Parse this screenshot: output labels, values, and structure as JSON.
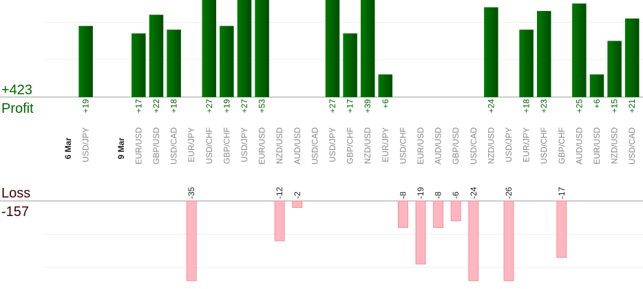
{
  "chart_data": {
    "type": "bar",
    "profit_title": "Profit",
    "loss_title": "Loss",
    "totals": {
      "profit": {
        "value": 423,
        "label": "+423"
      },
      "loss": -157
    },
    "ylim": [
      0,
      26
    ],
    "yticks": [
      0,
      10,
      20
    ],
    "y2lim": [
      -24,
      0
    ],
    "y2ticks": [
      -20,
      -10,
      0
    ],
    "grid": true,
    "profit_color": "#006400",
    "loss_color": "#ffb6c1",
    "days": [
      {
        "date": "6 Mar",
        "categories": [
          "USD/JPY"
        ],
        "values": [
          19
        ],
        "value_labels": [
          "+19"
        ]
      },
      {
        "date": "9 Mar",
        "categories": [
          "EUR/USD",
          "GBP/USD",
          "USD/CAD",
          "EUR/JPY",
          "USD/CHF",
          "GBP/CHF",
          "USD/JPY",
          "EUR/USD",
          "NZD/USD",
          "AUD/USD",
          "USD/CAD",
          "USD/JPY",
          "GBP/CHF",
          "NZD/USD",
          "EUR/JPY",
          "USD/CHF",
          "EUR/USD",
          "AUD/USD",
          "GBP/USD",
          "USD/CAD",
          "NZD/USD",
          "USD/JPY",
          "EUR/JPY",
          "USD/CHF",
          "GBP/CHF",
          "AUD/USD",
          "EUR/USD",
          "NZD/USD",
          "USD/CAD"
        ],
        "values": [
          17,
          22,
          18,
          -35,
          27,
          19,
          27,
          53,
          -12,
          -2,
          null,
          27,
          17,
          39,
          6,
          -8,
          -19,
          -8,
          -6,
          -24,
          24,
          -26,
          18,
          23,
          -17,
          25,
          6,
          15,
          21
        ],
        "value_labels": [
          "+17",
          "+22",
          "+18",
          "-35",
          "+27",
          "+19",
          "+27",
          "+53",
          "-12",
          "-2",
          null,
          "+27",
          "+17",
          "+39",
          "+6",
          "-8",
          "-19",
          "-8",
          "-6",
          "-24",
          "+24",
          "-26",
          "+18",
          "+23",
          "-17",
          "+25",
          "+6",
          "+15",
          "+21"
        ]
      }
    ]
  }
}
